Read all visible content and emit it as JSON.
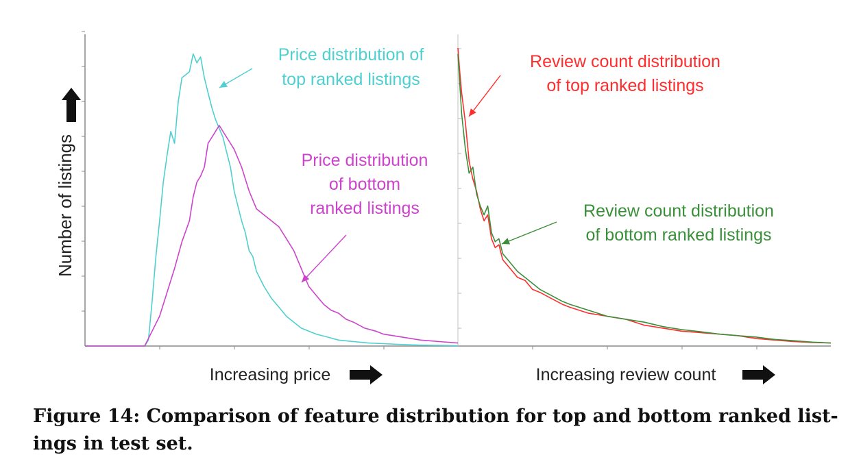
{
  "colors": {
    "top_price": "#4fcfcf",
    "bottom_price": "#cc44cc",
    "top_reviews": "#ff2d2d",
    "bottom_reviews": "#3a8f3a",
    "axis": "#888888",
    "text": "#222222"
  },
  "y_axis_label": "Number of listings",
  "caption": {
    "line1": "Figure 14: Comparison of feature distribution for top and bottom ranked list-",
    "line2": "ings in test set."
  },
  "chart_data": [
    {
      "type": "line",
      "xlabel": "Increasing price",
      "ylabel": "Number of listings",
      "xlim": [
        0,
        100
      ],
      "ylim": [
        0,
        100
      ],
      "grid": false,
      "annotations": [
        {
          "lines": [
            "Price distribution of",
            "top ranked listings"
          ],
          "series": "top"
        },
        {
          "lines": [
            "Price distribution",
            "of bottom",
            "ranked listings"
          ],
          "series": "bottom"
        }
      ],
      "series": [
        {
          "key": "top",
          "color_key": "top_price",
          "x": [
            0,
            16,
            17,
            18,
            19,
            20,
            21,
            22,
            23,
            24,
            25,
            26,
            27,
            28,
            29,
            30,
            31,
            32,
            33,
            34,
            35,
            36,
            37,
            38,
            39,
            40,
            41,
            42,
            43,
            44,
            45,
            46,
            48,
            50,
            52,
            54,
            56,
            58,
            60,
            62,
            65,
            68,
            72,
            76,
            80,
            85,
            90,
            95,
            100
          ],
          "y": [
            0,
            0,
            2,
            15,
            30,
            42,
            55,
            64,
            72,
            68,
            82,
            90,
            91,
            92,
            98,
            95,
            97,
            90,
            85,
            80,
            76,
            73,
            70,
            65,
            60,
            52,
            47,
            42,
            38,
            32,
            30,
            25,
            20,
            16,
            13,
            10,
            8,
            6,
            5,
            4,
            3,
            2,
            1.5,
            1,
            0.8,
            0.5,
            0.3,
            0.2,
            0.1
          ]
        },
        {
          "key": "bottom",
          "color_key": "bottom_price",
          "x": [
            0,
            16,
            18,
            20,
            22,
            24,
            26,
            28,
            29,
            30,
            31,
            32,
            33,
            34,
            35,
            36,
            38,
            40,
            42,
            44,
            46,
            48,
            50,
            52,
            54,
            56,
            58,
            60,
            62,
            64,
            66,
            68,
            70,
            72,
            75,
            78,
            80,
            85,
            90,
            95,
            100
          ],
          "y": [
            0,
            0,
            5,
            10,
            18,
            26,
            35,
            42,
            50,
            55,
            57,
            60,
            68,
            70,
            72,
            74,
            70,
            66,
            60,
            52,
            46,
            44,
            42,
            40,
            36,
            32,
            26,
            20,
            17,
            14,
            12,
            11,
            9,
            8,
            6,
            5,
            4,
            3,
            2,
            1.5,
            1
          ]
        }
      ]
    },
    {
      "type": "line",
      "xlabel": "Increasing review count",
      "ylabel": "",
      "xlim": [
        0,
        100
      ],
      "ylim": [
        0,
        100
      ],
      "grid": false,
      "annotations": [
        {
          "lines": [
            "Review count distribution",
            "of top ranked listings"
          ],
          "series": "top"
        },
        {
          "lines": [
            "Review count distribution",
            "of bottom ranked listings"
          ],
          "series": "bottom"
        }
      ],
      "series": [
        {
          "key": "top",
          "color_key": "top_reviews",
          "x": [
            0,
            0.5,
            1,
            2,
            3,
            4,
            5,
            6,
            7,
            8,
            9,
            10,
            11,
            12,
            14,
            16,
            18,
            20,
            22,
            25,
            28,
            30,
            35,
            40,
            45,
            50,
            55,
            60,
            65,
            70,
            75,
            80,
            85,
            90,
            95,
            100
          ],
          "y": [
            100,
            92,
            85,
            75,
            62,
            56,
            52,
            46,
            42,
            44,
            36,
            33,
            34,
            29,
            26,
            23,
            22,
            19,
            18,
            16,
            14,
            13,
            11,
            10,
            9,
            7,
            6,
            5,
            4.5,
            4,
            3.5,
            2.5,
            2,
            1.5,
            1.2,
            1
          ]
        },
        {
          "key": "bottom",
          "color_key": "bottom_reviews",
          "x": [
            0,
            0.5,
            1,
            2,
            3,
            4,
            5,
            6,
            7,
            8,
            9,
            10,
            11,
            12,
            14,
            16,
            18,
            20,
            22,
            25,
            28,
            30,
            35,
            40,
            45,
            50,
            55,
            60,
            65,
            70,
            75,
            80,
            85,
            90,
            95,
            100
          ],
          "y": [
            98,
            88,
            78,
            66,
            58,
            60,
            51,
            47,
            44,
            47,
            38,
            35,
            36,
            31,
            28,
            25,
            23,
            21,
            19,
            17,
            15,
            14,
            12,
            10,
            9,
            8,
            6.5,
            5.5,
            4.8,
            4,
            3.5,
            3,
            2.2,
            1.8,
            1.3,
            1
          ]
        }
      ]
    }
  ]
}
